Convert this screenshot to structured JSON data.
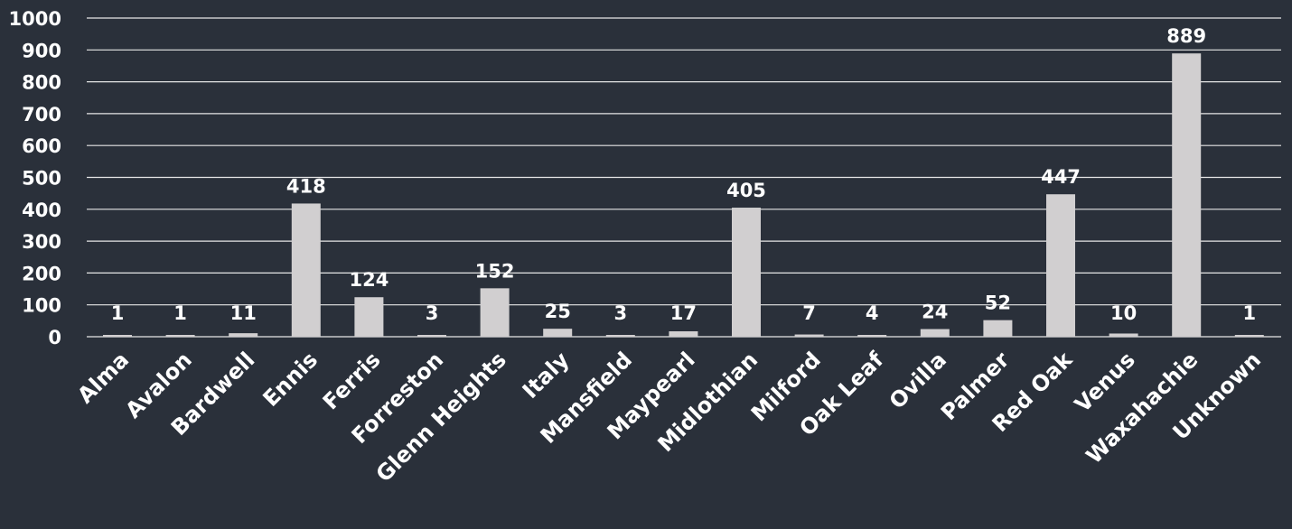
{
  "colors": {
    "background": "#2a303a",
    "bar": "#d1cfd0",
    "gridline": "#e6e6e6",
    "text": "#ffffff"
  },
  "chart_data": {
    "type": "bar",
    "title": "",
    "xlabel": "",
    "ylabel": "",
    "ylim": [
      0,
      1000
    ],
    "yticks": [
      0,
      100,
      200,
      300,
      400,
      500,
      600,
      700,
      800,
      900,
      1000
    ],
    "grid": true,
    "legend": "none",
    "categories": [
      "Alma",
      "Avalon",
      "Bardwell",
      "Ennis",
      "Ferris",
      "Forreston",
      "Glenn Heights",
      "Italy",
      "Mansfield",
      "Maypearl",
      "Midlothian",
      "Milford",
      "Oak Leaf",
      "Ovilla",
      "Palmer",
      "Red Oak",
      "Venus",
      "Waxahachie",
      "Unknown"
    ],
    "values": [
      1,
      1,
      11,
      418,
      124,
      3,
      152,
      25,
      3,
      17,
      405,
      7,
      4,
      24,
      52,
      447,
      10,
      889,
      1
    ]
  }
}
